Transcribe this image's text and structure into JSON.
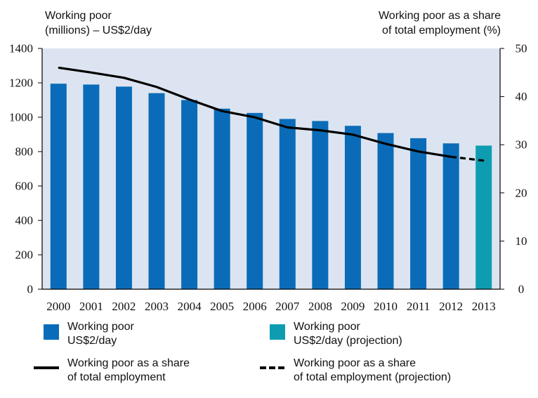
{
  "chart_data": {
    "type": "bar",
    "categories": [
      "2000",
      "2001",
      "2002",
      "2003",
      "2004",
      "2005",
      "2006",
      "2007",
      "2008",
      "2009",
      "2010",
      "2011",
      "2012",
      "2013"
    ],
    "series": [
      {
        "name": "Working poor US$2/day",
        "type": "bar",
        "axis": "left",
        "values": [
          1195,
          1190,
          1178,
          1140,
          1100,
          1050,
          1025,
          990,
          978,
          950,
          908,
          878,
          848,
          835
        ],
        "projection_from_index": 13
      },
      {
        "name": "Working poor as a share of total employment",
        "type": "line",
        "axis": "right",
        "values": [
          46.0,
          45.0,
          43.9,
          42.0,
          39.4,
          37.0,
          35.7,
          33.6,
          33.0,
          32.1,
          30.2,
          28.6,
          27.5,
          26.7
        ],
        "projection_from_index": 12
      }
    ],
    "ylabel_left": [
      "Working poor",
      "(millions) – US$2/day"
    ],
    "ylabel_right": [
      "Working poor as a share",
      "of total employment (%)"
    ],
    "ylim_left": [
      0,
      1400
    ],
    "ylim_right": [
      0,
      50
    ],
    "yticks_left": [
      0,
      200,
      400,
      600,
      800,
      1000,
      1200,
      1400
    ],
    "yticks_right": [
      0,
      10,
      20,
      30,
      40,
      50
    ],
    "grid": false,
    "legend_position": "bottom",
    "colors": {
      "bar": "#0a6cb8",
      "bar_projection": "#0e9db0",
      "line": "#000000",
      "plot_bg": "#dce4f1"
    }
  },
  "legend": {
    "bar": [
      "Working poor",
      "US$2/day"
    ],
    "bar_projection": [
      "Working poor",
      "US$2/day (projection)"
    ],
    "line": [
      "Working poor as a share",
      "of total employment"
    ],
    "line_projection": [
      "Working poor as a share",
      "of total employment (projection)"
    ]
  }
}
